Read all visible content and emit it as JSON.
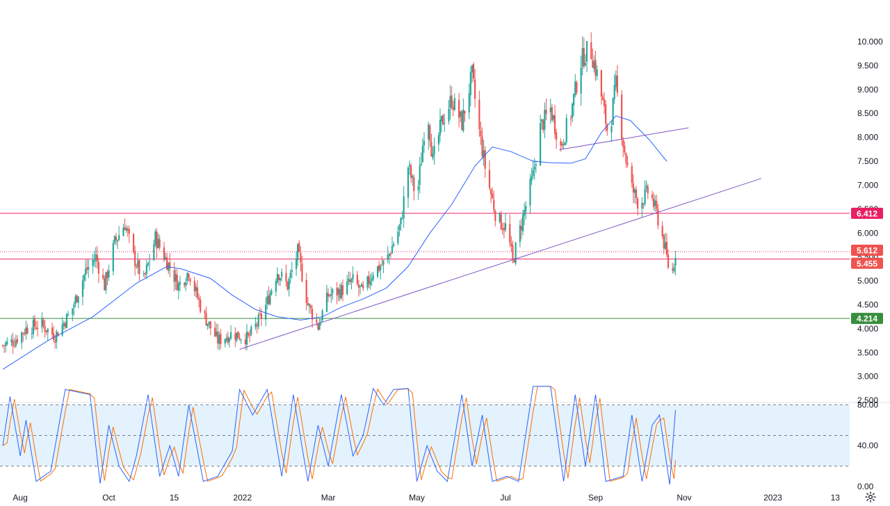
{
  "chart_data": [
    {
      "type": "candlestick",
      "title": "",
      "y_ticks": [
        "10.000",
        "9.500",
        "9.000",
        "8.500",
        "8.000",
        "7.500",
        "7.000",
        "6.500",
        "6.000",
        "5.500",
        "5.000",
        "4.500",
        "4.000",
        "3.500",
        "3.000",
        "2.500"
      ],
      "ylim": [
        2.5,
        10.0
      ],
      "x_ticks": [
        "Aug",
        "Oct",
        "15",
        "2022",
        "Mar",
        "May",
        "Jul",
        "Sep",
        "Nov",
        "2023",
        "13"
      ],
      "colors": {
        "up": "#26a69a",
        "down": "#ef5350",
        "ma": "#2962ff",
        "trendline": "#7e57c2",
        "resistance": "#e91e63",
        "support": "#388e3c"
      },
      "anchors": [
        [
          "2021-07-20",
          3.65
        ],
        [
          "2021-07-28",
          3.75
        ],
        [
          "2021-08-05",
          4.0
        ],
        [
          "2021-08-15",
          4.1
        ],
        [
          "2021-08-25",
          3.85
        ],
        [
          "2021-09-05",
          4.35
        ],
        [
          "2021-09-15",
          5.2
        ],
        [
          "2021-09-22",
          5.5
        ],
        [
          "2021-09-28",
          4.9
        ],
        [
          "2021-10-05",
          5.8
        ],
        [
          "2021-10-12",
          6.2
        ],
        [
          "2021-10-18",
          5.5
        ],
        [
          "2021-10-25",
          5.0
        ],
        [
          "2021-11-02",
          5.9
        ],
        [
          "2021-11-10",
          5.4
        ],
        [
          "2021-11-18",
          4.9
        ],
        [
          "2021-11-25",
          5.2
        ],
        [
          "2021-12-05",
          4.3
        ],
        [
          "2021-12-15",
          3.75
        ],
        [
          "2021-12-25",
          3.9
        ],
        [
          "2022-01-05",
          3.8
        ],
        [
          "2022-01-15",
          4.3
        ],
        [
          "2022-01-25",
          5.2
        ],
        [
          "2022-02-01",
          4.9
        ],
        [
          "2022-02-08",
          5.6
        ],
        [
          "2022-02-15",
          4.5
        ],
        [
          "2022-02-22",
          4.05
        ],
        [
          "2022-03-01",
          4.7
        ],
        [
          "2022-03-10",
          4.8
        ],
        [
          "2022-03-18",
          5.0
        ],
        [
          "2022-03-25",
          4.75
        ],
        [
          "2022-04-01",
          5.2
        ],
        [
          "2022-04-10",
          5.4
        ],
        [
          "2022-04-20",
          6.2
        ],
        [
          "2022-04-25",
          7.4
        ],
        [
          "2022-05-01",
          6.7
        ],
        [
          "2022-05-08",
          8.7
        ],
        [
          "2022-05-12",
          7.5
        ],
        [
          "2022-05-18",
          8.3
        ],
        [
          "2022-05-25",
          8.8
        ],
        [
          "2022-06-01",
          8.3
        ],
        [
          "2022-06-08",
          9.3
        ],
        [
          "2022-06-12",
          8.3
        ],
        [
          "2022-06-18",
          7.2
        ],
        [
          "2022-06-25",
          6.3
        ],
        [
          "2022-07-02",
          6.1
        ],
        [
          "2022-07-06",
          5.4
        ],
        [
          "2022-07-12",
          6.2
        ],
        [
          "2022-07-20",
          7.2
        ],
        [
          "2022-07-25",
          8.2
        ],
        [
          "2022-08-01",
          8.6
        ],
        [
          "2022-08-08",
          7.8
        ],
        [
          "2022-08-15",
          8.5
        ],
        [
          "2022-08-22",
          9.6
        ],
        [
          "2022-08-28",
          9.9
        ],
        [
          "2022-09-03",
          9.2
        ],
        [
          "2022-09-10",
          8.0
        ],
        [
          "2022-09-15",
          9.1
        ],
        [
          "2022-09-20",
          7.9
        ],
        [
          "2022-09-25",
          7.0
        ],
        [
          "2022-10-01",
          6.6
        ],
        [
          "2022-10-08",
          6.9
        ],
        [
          "2022-10-14",
          6.3
        ],
        [
          "2022-10-18",
          5.8
        ],
        [
          "2022-10-23",
          5.0
        ],
        [
          "2022-10-26",
          5.61
        ]
      ],
      "moving_average": [
        [
          "2021-07-20",
          3.15
        ],
        [
          "2021-08-20",
          3.75
        ],
        [
          "2021-09-20",
          4.25
        ],
        [
          "2021-10-20",
          4.95
        ],
        [
          "2021-11-10",
          5.3
        ],
        [
          "2021-11-20",
          5.25
        ],
        [
          "2021-12-10",
          5.05
        ],
        [
          "2021-12-25",
          4.7
        ],
        [
          "2022-01-10",
          4.4
        ],
        [
          "2022-01-25",
          4.25
        ],
        [
          "2022-02-10",
          4.18
        ],
        [
          "2022-02-25",
          4.25
        ],
        [
          "2022-03-10",
          4.45
        ],
        [
          "2022-03-25",
          4.62
        ],
        [
          "2022-04-10",
          4.85
        ],
        [
          "2022-04-25",
          5.3
        ],
        [
          "2022-05-10",
          6.0
        ],
        [
          "2022-05-25",
          6.6
        ],
        [
          "2022-06-10",
          7.4
        ],
        [
          "2022-06-22",
          7.8
        ],
        [
          "2022-07-05",
          7.7
        ],
        [
          "2022-07-20",
          7.5
        ],
        [
          "2022-08-01",
          7.47
        ],
        [
          "2022-08-15",
          7.46
        ],
        [
          "2022-08-25",
          7.55
        ],
        [
          "2022-09-05",
          8.1
        ],
        [
          "2022-09-15",
          8.45
        ],
        [
          "2022-09-25",
          8.35
        ],
        [
          "2022-10-08",
          7.95
        ],
        [
          "2022-10-20",
          7.5
        ]
      ],
      "lines": {
        "rising_trendline": [
          [
            "2021-12-30",
            3.57
          ],
          [
            "2022-12-24",
            7.14
          ]
        ],
        "upper_trendline": [
          [
            "2022-08-07",
            7.74
          ],
          [
            "2022-11-04",
            8.2
          ]
        ],
        "resistance": {
          "value": 6.412,
          "label": "6.412"
        },
        "current": {
          "value": 5.612,
          "label": "5.612"
        },
        "level_mid": {
          "value": 5.455,
          "label": "5.455"
        },
        "support": {
          "value": 4.214,
          "label": "4.214"
        }
      }
    },
    {
      "type": "line",
      "subtype": "stochastic",
      "ylim": [
        0,
        100
      ],
      "y_ticks": [
        "80.00",
        "40.00",
        "0.00"
      ],
      "band": [
        20,
        80
      ],
      "midline": 50,
      "colors": {
        "k": "#2962ff",
        "d": "#ff6d00",
        "band": "#e3f2fd"
      },
      "k_anchors": [
        [
          "2021-07-20",
          40
        ],
        [
          "2021-07-25",
          88
        ],
        [
          "2021-08-01",
          30
        ],
        [
          "2021-08-05",
          65
        ],
        [
          "2021-08-12",
          5
        ],
        [
          "2021-08-22",
          15
        ],
        [
          "2021-09-01",
          95
        ],
        [
          "2021-09-18",
          90
        ],
        [
          "2021-09-25",
          3
        ],
        [
          "2021-10-01",
          60
        ],
        [
          "2021-10-08",
          20
        ],
        [
          "2021-10-15",
          5
        ],
        [
          "2021-10-20",
          30
        ],
        [
          "2021-10-28",
          90
        ],
        [
          "2021-11-05",
          10
        ],
        [
          "2021-11-12",
          40
        ],
        [
          "2021-11-18",
          10
        ],
        [
          "2021-11-25",
          80
        ],
        [
          "2021-12-05",
          5
        ],
        [
          "2021-12-15",
          10
        ],
        [
          "2021-12-25",
          35
        ],
        [
          "2021-12-30",
          95
        ],
        [
          "2022-01-08",
          70
        ],
        [
          "2022-01-18",
          95
        ],
        [
          "2022-01-28",
          10
        ],
        [
          "2022-02-05",
          90
        ],
        [
          "2022-02-15",
          5
        ],
        [
          "2022-02-22",
          60
        ],
        [
          "2022-03-01",
          20
        ],
        [
          "2022-03-10",
          90
        ],
        [
          "2022-03-18",
          30
        ],
        [
          "2022-03-25",
          50
        ],
        [
          "2022-04-01",
          96
        ],
        [
          "2022-04-08",
          80
        ],
        [
          "2022-04-15",
          95
        ],
        [
          "2022-04-25",
          96
        ],
        [
          "2022-05-01",
          5
        ],
        [
          "2022-05-08",
          40
        ],
        [
          "2022-05-15",
          15
        ],
        [
          "2022-05-22",
          5
        ],
        [
          "2022-06-01",
          90
        ],
        [
          "2022-06-08",
          20
        ],
        [
          "2022-06-15",
          70
        ],
        [
          "2022-06-22",
          5
        ],
        [
          "2022-07-02",
          10
        ],
        [
          "2022-07-10",
          5
        ],
        [
          "2022-07-20",
          98
        ],
        [
          "2022-08-01",
          98
        ],
        [
          "2022-08-10",
          5
        ],
        [
          "2022-08-18",
          90
        ],
        [
          "2022-08-25",
          20
        ],
        [
          "2022-09-01",
          90
        ],
        [
          "2022-09-08",
          5
        ],
        [
          "2022-09-20",
          10
        ],
        [
          "2022-09-26",
          70
        ],
        [
          "2022-10-03",
          5
        ],
        [
          "2022-10-10",
          60
        ],
        [
          "2022-10-15",
          70
        ],
        [
          "2022-10-22",
          2
        ],
        [
          "2022-10-26",
          75
        ]
      ]
    }
  ]
}
